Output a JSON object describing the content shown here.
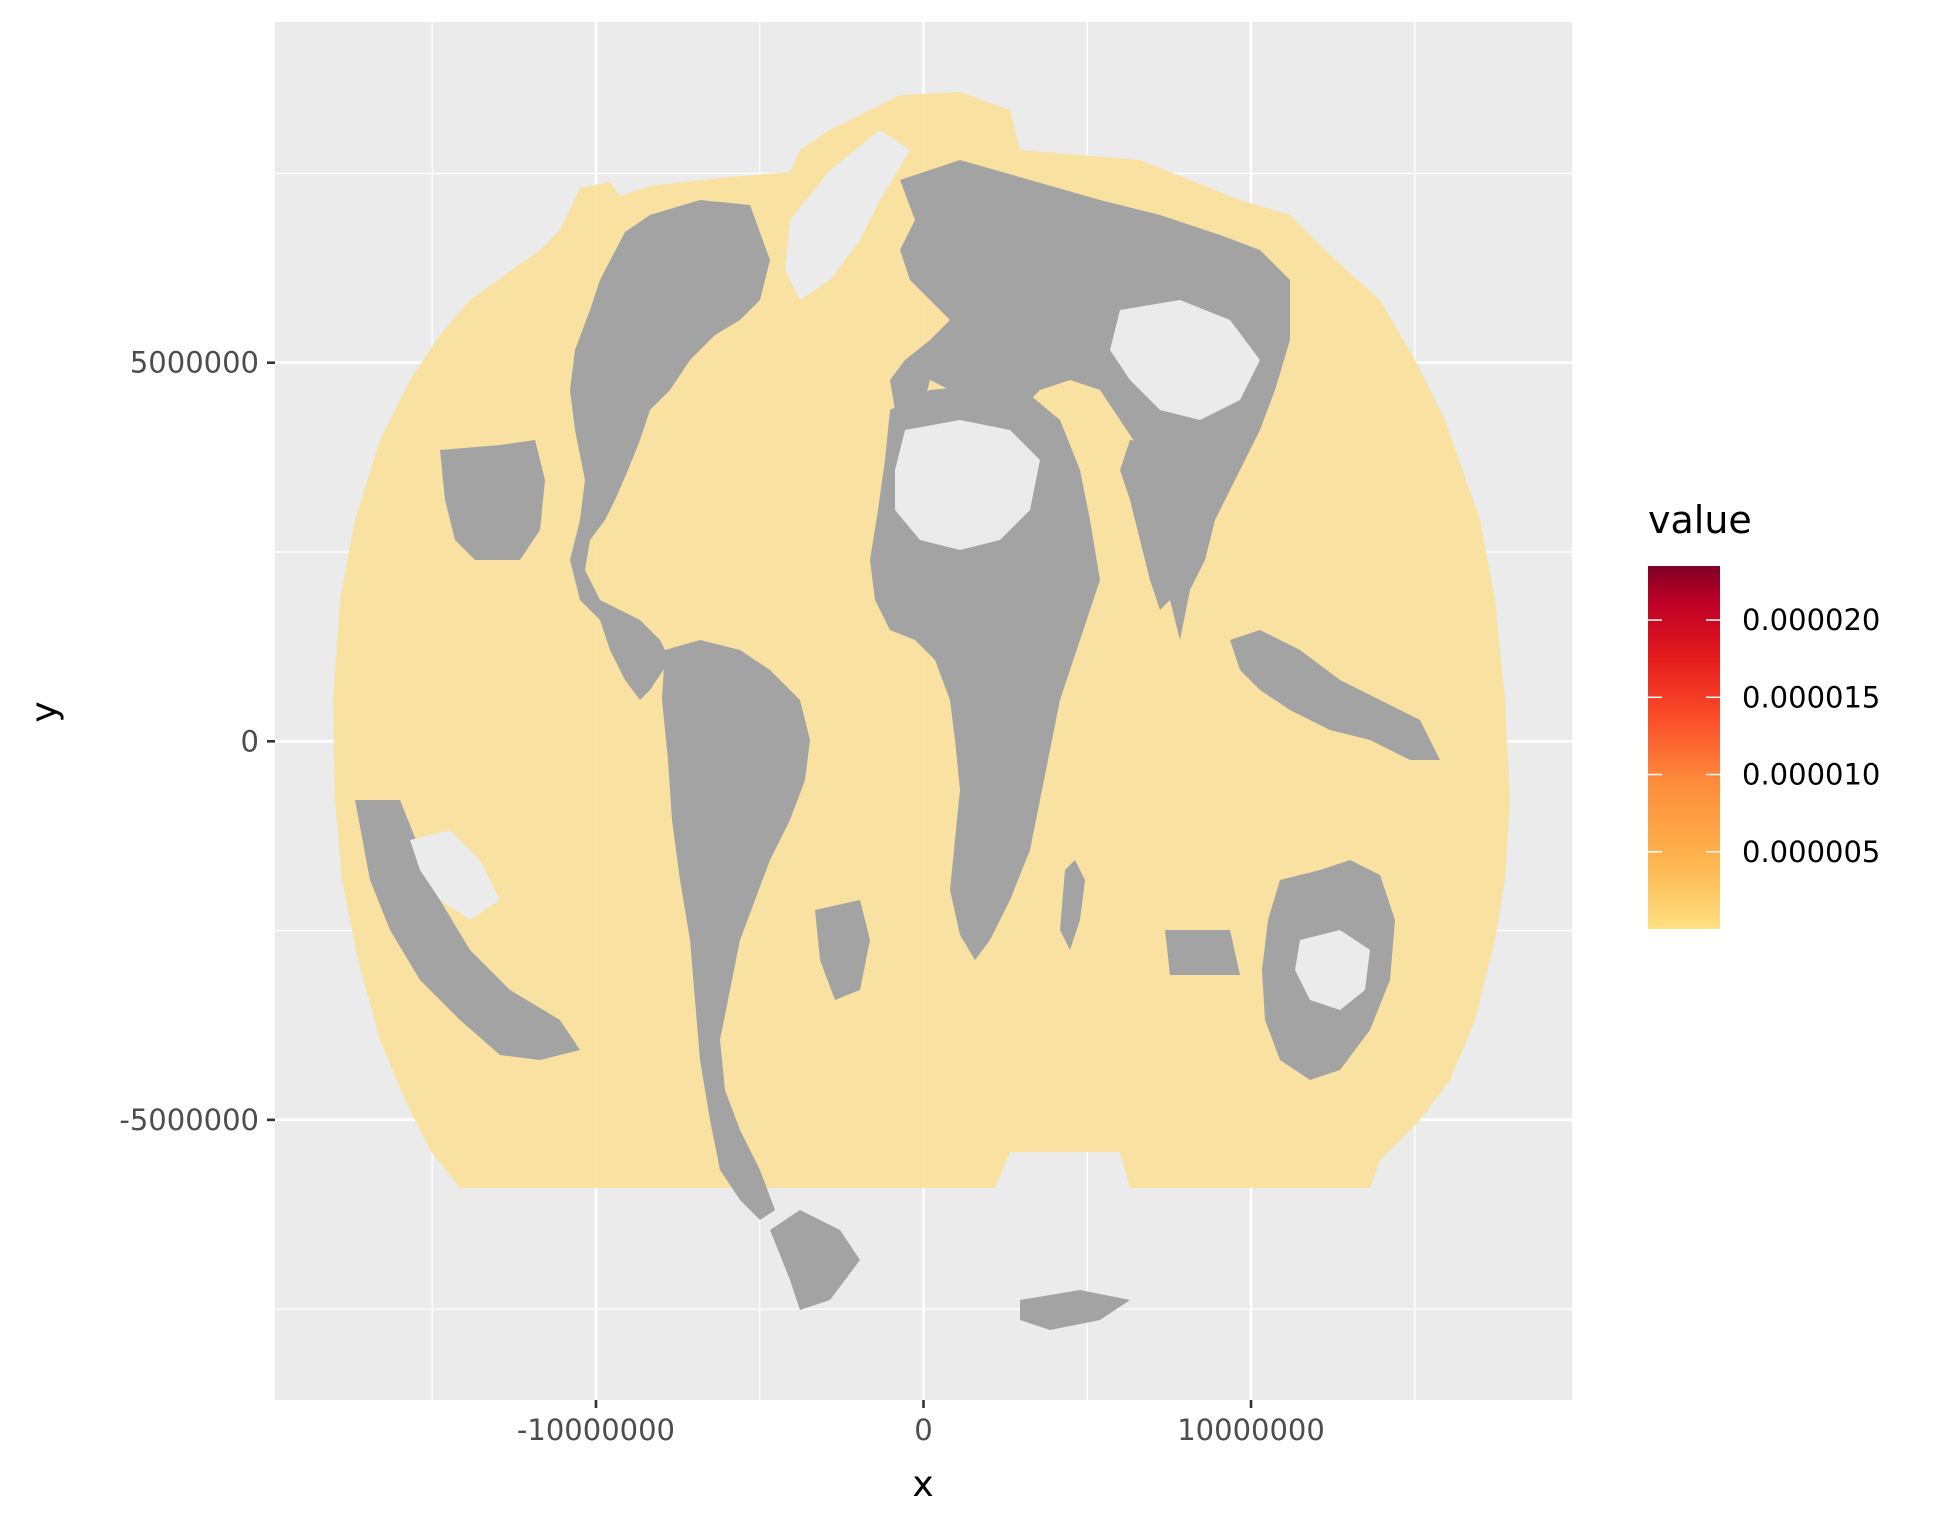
{
  "chart_data": {
    "type": "heatmap",
    "title": "",
    "xlabel": "x",
    "ylabel": "y",
    "xlim": [
      -19800000,
      19800000
    ],
    "ylim": [
      -8700000,
      9500000
    ],
    "x_ticks": [
      {
        "value": -10000000,
        "label": "-10000000"
      },
      {
        "value": 0,
        "label": "0"
      },
      {
        "value": 10000000,
        "label": "10000000"
      }
    ],
    "y_ticks": [
      {
        "value": 5000000,
        "label": "5000000"
      },
      {
        "value": 0,
        "label": "0"
      },
      {
        "value": -5000000,
        "label": "-5000000"
      }
    ],
    "x_minor": [
      -15000000,
      -5000000,
      5000000,
      15000000
    ],
    "y_minor": [
      7500000,
      2500000,
      -2500000,
      -7500000
    ],
    "grid": true,
    "legend": {
      "title": "value",
      "position": "right",
      "range": [
        0,
        2.35e-05
      ],
      "breaks": [
        {
          "value": 2e-05,
          "label": "0.000020"
        },
        {
          "value": 1.5e-05,
          "label": "0.000015"
        },
        {
          "value": 1e-05,
          "label": "0.000010"
        },
        {
          "value": 5e-06,
          "label": "0.000005"
        }
      ],
      "colors": [
        "#ffe082",
        "#feb24c",
        "#fd8d3c",
        "#fc4e2a",
        "#e31a1c",
        "#bd0026",
        "#800026"
      ]
    },
    "fill_ocean": "#f9e09a",
    "fill_land": "#a3a3a3",
    "panel_background": "#ebebeb",
    "grid_color": "#ffffff"
  }
}
